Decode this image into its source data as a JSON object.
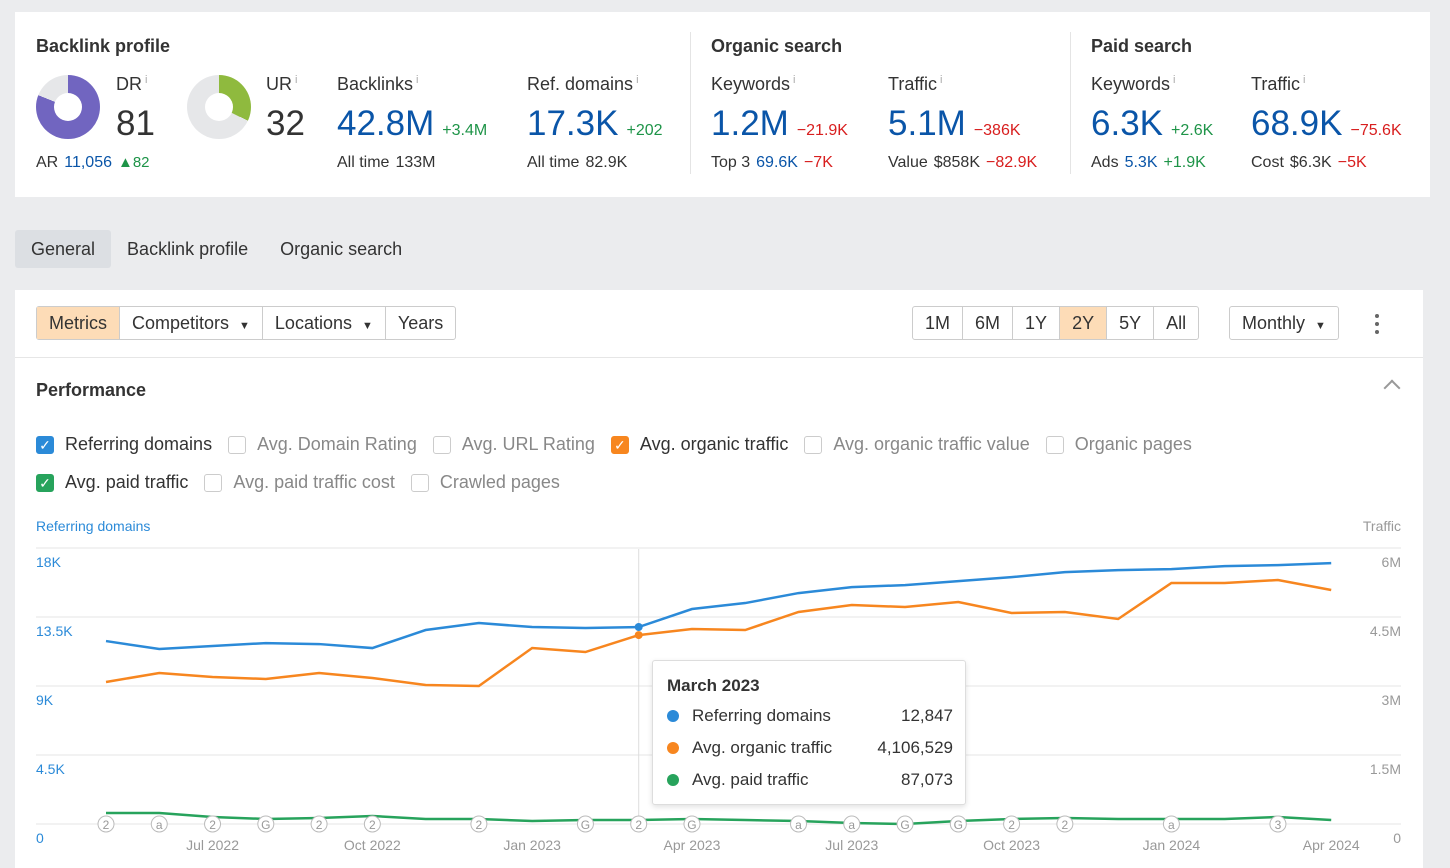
{
  "backlink_profile": {
    "title": "Backlink profile",
    "dr": {
      "label": "DR",
      "value": "81",
      "fraction": 0.81
    },
    "ur": {
      "label": "UR",
      "value": "32",
      "fraction": 0.32
    },
    "ar": {
      "label": "AR",
      "value": "11,056",
      "delta": "▲82"
    },
    "backlinks": {
      "label": "Backlinks",
      "value": "42.8M",
      "delta": "+3.4M",
      "sub_label": "All time",
      "sub_value": "133M"
    },
    "ref_domains": {
      "label": "Ref. domains",
      "value": "17.3K",
      "delta": "+202",
      "sub_label": "All time",
      "sub_value": "82.9K"
    }
  },
  "organic_search": {
    "title": "Organic search",
    "keywords": {
      "label": "Keywords",
      "value": "1.2M",
      "delta": "−21.9K",
      "sub_label": "Top 3",
      "sub_value": "69.6K",
      "sub_delta": "−7K"
    },
    "traffic": {
      "label": "Traffic",
      "value": "5.1M",
      "delta": "−386K",
      "sub_label": "Value",
      "sub_value": "$858K",
      "sub_delta": "−82.9K"
    }
  },
  "paid_search": {
    "title": "Paid search",
    "keywords": {
      "label": "Keywords",
      "value": "6.3K",
      "delta": "+2.6K",
      "sub_label": "Ads",
      "sub_value": "5.3K",
      "sub_delta": "+1.9K"
    },
    "traffic": {
      "label": "Traffic",
      "value": "68.9K",
      "delta": "−75.6K",
      "sub_label": "Cost",
      "sub_value": "$6.3K",
      "sub_delta": "−5K"
    }
  },
  "info_mark": "i",
  "tabs": [
    "General",
    "Backlink profile",
    "Organic search"
  ],
  "toolbar": {
    "metrics": "Metrics",
    "competitors": "Competitors",
    "locations": "Locations",
    "years": "Years",
    "ranges": [
      "1M",
      "6M",
      "1Y",
      "2Y",
      "5Y",
      "All"
    ],
    "selected_range": "2Y",
    "interval": "Monthly"
  },
  "performance": {
    "title": "Performance",
    "checkboxes": [
      {
        "label": "Referring domains",
        "checked": true,
        "color": "#2b8ad8"
      },
      {
        "label": "Avg. Domain Rating",
        "checked": false
      },
      {
        "label": "Avg. URL Rating",
        "checked": false
      },
      {
        "label": "Avg. organic traffic",
        "checked": true,
        "color": "#f7861f"
      },
      {
        "label": "Avg. organic traffic value",
        "checked": false
      },
      {
        "label": "Organic pages",
        "checked": false
      },
      {
        "label": "Avg. paid traffic",
        "checked": true,
        "color": "#27a35c"
      },
      {
        "label": "Avg. paid traffic cost",
        "checked": false
      },
      {
        "label": "Crawled pages",
        "checked": false
      }
    ]
  },
  "chart_data": {
    "type": "line",
    "left_axis_label": "Referring domains",
    "right_axis_label": "Traffic",
    "left_ticks": [
      "0",
      "4.5K",
      "9K",
      "13.5K",
      "18K"
    ],
    "left_ylim": [
      0,
      18000
    ],
    "right_ticks": [
      "0",
      "1.5M",
      "3M",
      "4.5M",
      "6M"
    ],
    "right_ylim": [
      0,
      6000000
    ],
    "x_ticks": [
      "Jul 2022",
      "Oct 2022",
      "Jan 2023",
      "Apr 2023",
      "Jul 2023",
      "Oct 2023",
      "Jan 2024",
      "Apr 2024"
    ],
    "x_tick_index": [
      2,
      5,
      8,
      11,
      14,
      17,
      20,
      23
    ],
    "x": [
      "May 2022",
      "Jun 2022",
      "Jul 2022",
      "Aug 2022",
      "Sep 2022",
      "Oct 2022",
      "Nov 2022",
      "Dec 2022",
      "Jan 2023",
      "Feb 2023",
      "Mar 2023",
      "Apr 2023",
      "May 2023",
      "Jun 2023",
      "Jul 2023",
      "Aug 2023",
      "Sep 2023",
      "Oct 2023",
      "Nov 2023",
      "Dec 2023",
      "Jan 2024",
      "Feb 2024",
      "Mar 2024",
      "Apr 2024"
    ],
    "series": [
      {
        "name": "Referring domains",
        "axis": "left",
        "color": "#2b8ad8",
        "values": [
          11930,
          11410,
          11605,
          11800,
          11735,
          11475,
          12650,
          13105,
          12845,
          12780,
          12847,
          14020,
          14410,
          15060,
          15450,
          15580,
          15840,
          16100,
          16430,
          16560,
          16625,
          16820,
          16885,
          17015
        ]
      },
      {
        "name": "Avg. organic traffic",
        "axis": "right",
        "color": "#f7861f",
        "values": [
          3087000,
          3283000,
          3196000,
          3152000,
          3283000,
          3174000,
          3022000,
          3000000,
          3826000,
          3739000,
          4106529,
          4239000,
          4217000,
          4609000,
          4761000,
          4717000,
          4826000,
          4587000,
          4609000,
          4457000,
          5239000,
          5239000,
          5304000,
          5087000
        ]
      },
      {
        "name": "Avg. paid traffic",
        "axis": "right",
        "color": "#27a35c",
        "values": [
          239000,
          239000,
          152000,
          109000,
          130000,
          174000,
          109000,
          109000,
          65000,
          87000,
          87073,
          109000,
          87000,
          65000,
          22000,
          0,
          65000,
          109000,
          130000,
          109000,
          109000,
          109000,
          152000,
          87000
        ]
      }
    ],
    "annotations": [
      {
        "i": 0,
        "t": "2"
      },
      {
        "i": 1,
        "t": "a"
      },
      {
        "i": 2,
        "t": "2"
      },
      {
        "i": 3,
        "t": "G"
      },
      {
        "i": 4,
        "t": "2"
      },
      {
        "i": 5,
        "t": "2"
      },
      {
        "i": 7,
        "t": "2"
      },
      {
        "i": 9,
        "t": "G"
      },
      {
        "i": 10,
        "t": "2"
      },
      {
        "i": 11,
        "t": "G"
      },
      {
        "i": 13,
        "t": "a"
      },
      {
        "i": 14,
        "t": "a"
      },
      {
        "i": 15,
        "t": "G"
      },
      {
        "i": 16,
        "t": "G"
      },
      {
        "i": 17,
        "t": "2"
      },
      {
        "i": 18,
        "t": "2"
      },
      {
        "i": 20,
        "t": "a"
      },
      {
        "i": 22,
        "t": "3"
      }
    ],
    "hover_index": 10
  },
  "tooltip": {
    "title": "March 2023",
    "rows": [
      {
        "label": "Referring domains",
        "value": "12,847",
        "color": "#2b8ad8"
      },
      {
        "label": "Avg. organic traffic",
        "value": "4,106,529",
        "color": "#f7861f"
      },
      {
        "label": "Avg. paid traffic",
        "value": "87,073",
        "color": "#27a35c"
      }
    ]
  }
}
